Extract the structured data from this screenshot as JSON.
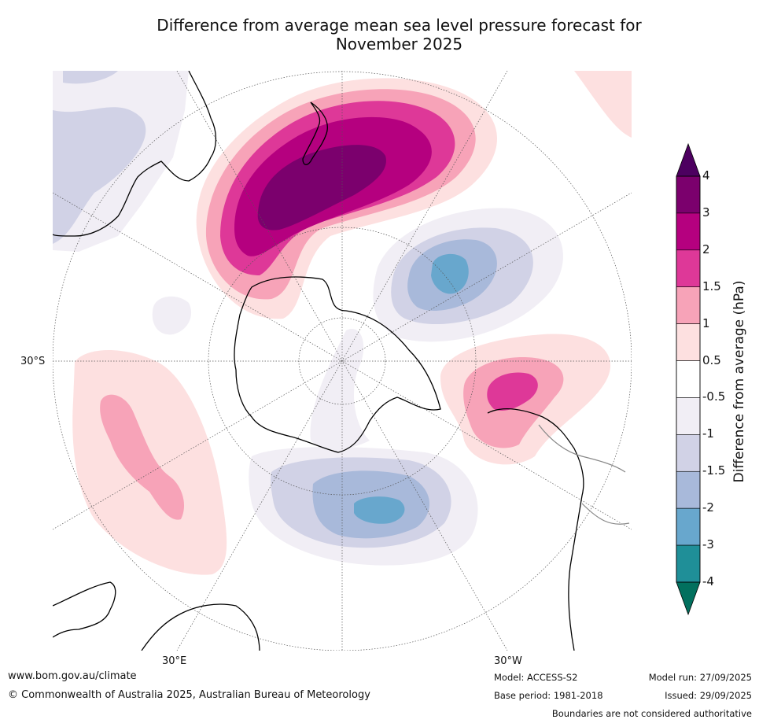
{
  "title": {
    "line1": "Difference from average mean sea level pressure forecast for",
    "line2": "November 2025"
  },
  "map_labels": {
    "lat30s": "30°S",
    "lon30e": "30°E",
    "lon30w": "30°W"
  },
  "colorbar": {
    "title": "Difference from average (hPa)",
    "ticks": [
      "4",
      "3",
      "2",
      "1.5",
      "1",
      "0.5",
      "-0.5",
      "-1",
      "-1.5",
      "-2",
      "-3",
      "-4"
    ],
    "colors": [
      "#7b006d",
      "#b5007f",
      "#de3898",
      "#f7a3b8",
      "#fde0e0",
      "#ffffff",
      "#f1eef5",
      "#d1d2e6",
      "#a8b9da",
      "#68a7cd",
      "#1f8f98"
    ],
    "over_color": "#4d0060",
    "under_color": "#02705e"
  },
  "footer": {
    "website": "www.bom.gov.au/climate",
    "copyright": "© Commonwealth of Australia 2025, Australian Bureau of Meteorology",
    "model": "Model: ACCESS-S2",
    "base_period": "Base period: 1981-2018",
    "model_run": "Model run: 27/09/2025",
    "issued": "Issued: 29/09/2025",
    "disclaimer": "Boundaries are not considered authoritative"
  }
}
